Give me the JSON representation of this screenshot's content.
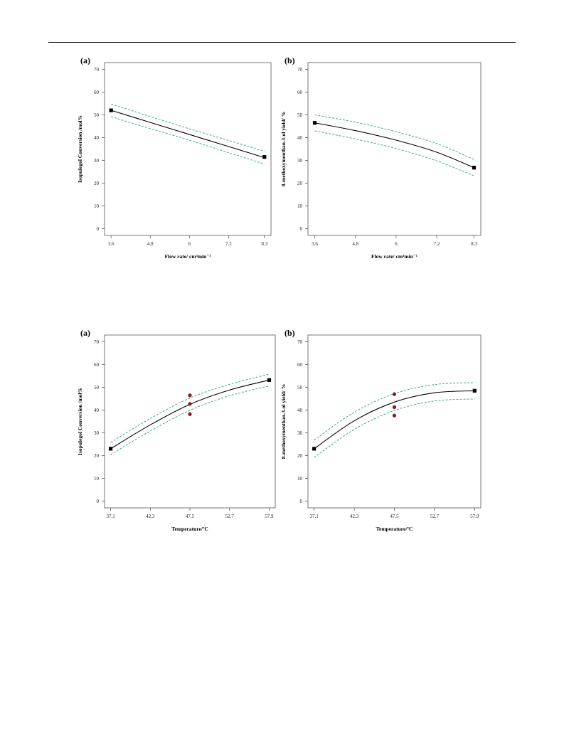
{
  "chart_data": [
    {
      "type": "line",
      "panel_label": "(a)",
      "xlabel": "Flow rate/ cm³min⁻¹",
      "ylabel": "Isopulegol Conversion /mol%",
      "xlim": [
        3.4,
        8.5
      ],
      "ylim": [
        -3,
        73
      ],
      "xticks": [
        3.6,
        4.8,
        6,
        7.2,
        8.3
      ],
      "yticks": [
        0,
        10,
        20,
        30,
        40,
        50,
        60,
        70
      ],
      "series": [
        {
          "role": "fit",
          "color": "#000000",
          "x": [
            3.6,
            4.8,
            6.0,
            7.2,
            8.3
          ],
          "y": [
            52.0,
            46.7,
            41.4,
            36.1,
            31.2
          ]
        },
        {
          "role": "upper-ci",
          "color": "#2a9d8f",
          "x": [
            3.6,
            4.8,
            6.0,
            7.2,
            8.3
          ],
          "y": [
            54.8,
            49.3,
            43.9,
            38.8,
            34.0
          ]
        },
        {
          "role": "lower-ci",
          "color": "#2a9d8f",
          "x": [
            3.6,
            4.8,
            6.0,
            7.2,
            8.3
          ],
          "y": [
            49.2,
            44.0,
            38.9,
            33.4,
            28.4
          ]
        }
      ],
      "points": [
        {
          "x": 3.6,
          "y": 52.0,
          "marker": "square",
          "color": "#000000"
        },
        {
          "x": 8.3,
          "y": 31.5,
          "marker": "square",
          "color": "#000000"
        }
      ]
    },
    {
      "type": "line",
      "panel_label": "(b)",
      "xlabel": "Flow rate/ cm³min⁻¹",
      "ylabel": "8-methoxymenthan-3-ol yield/ %",
      "xlim": [
        3.4,
        8.5
      ],
      "ylim": [
        -3,
        73
      ],
      "xticks": [
        3.6,
        4.8,
        6,
        7.2,
        8.3
      ],
      "yticks": [
        0,
        10,
        20,
        30,
        40,
        50,
        60,
        70
      ],
      "series": [
        {
          "role": "fit",
          "color": "#000000",
          "x": [
            3.6,
            4.8,
            6.0,
            7.2,
            8.3
          ],
          "y": [
            46.5,
            43.1,
            38.9,
            33.6,
            26.8
          ]
        },
        {
          "role": "upper-ci",
          "color": "#2a9d8f",
          "x": [
            3.6,
            4.8,
            6.0,
            7.2,
            8.3
          ],
          "y": [
            50.0,
            46.8,
            42.6,
            37.4,
            30.4
          ]
        },
        {
          "role": "lower-ci",
          "color": "#2a9d8f",
          "x": [
            3.6,
            4.8,
            6.0,
            7.2,
            8.3
          ],
          "y": [
            43.0,
            39.4,
            35.2,
            29.8,
            23.2
          ]
        }
      ],
      "points": [
        {
          "x": 3.6,
          "y": 46.5,
          "marker": "square",
          "color": "#000000"
        },
        {
          "x": 8.3,
          "y": 26.8,
          "marker": "square",
          "color": "#000000"
        }
      ]
    },
    {
      "type": "line",
      "panel_label": "(a)",
      "xlabel": "Temperature/ºC",
      "ylabel": "Isopulegol Conversion /mol%",
      "xlim": [
        36.3,
        58.7
      ],
      "ylim": [
        -3,
        73
      ],
      "xticks": [
        37.1,
        42.3,
        47.5,
        52.7,
        57.9
      ],
      "yticks": [
        0,
        10,
        20,
        30,
        40,
        50,
        60,
        70
      ],
      "series": [
        {
          "role": "fit",
          "color": "#000000",
          "x": [
            37.1,
            42.3,
            47.5,
            52.7,
            57.9
          ],
          "y": [
            23.0,
            33.5,
            42.5,
            48.8,
            53.2
          ]
        },
        {
          "role": "upper-ci",
          "color": "#2a9d8f",
          "x": [
            37.1,
            42.3,
            47.5,
            52.7,
            57.9
          ],
          "y": [
            25.8,
            36.3,
            45.3,
            51.3,
            55.8
          ]
        },
        {
          "role": "lower-ci",
          "color": "#2a9d8f",
          "x": [
            37.1,
            42.3,
            47.5,
            52.7,
            57.9
          ],
          "y": [
            20.4,
            30.8,
            39.9,
            46.3,
            50.6
          ]
        }
      ],
      "points": [
        {
          "x": 37.1,
          "y": 23.0,
          "marker": "square",
          "color": "#000000"
        },
        {
          "x": 57.9,
          "y": 53.2,
          "marker": "square",
          "color": "#000000"
        },
        {
          "x": 47.5,
          "y": 46.5,
          "marker": "circle",
          "color": "#8b1a1a"
        },
        {
          "x": 47.5,
          "y": 42.7,
          "marker": "circle",
          "color": "#8b1a1a"
        },
        {
          "x": 47.5,
          "y": 38.2,
          "marker": "circle",
          "color": "#8b1a1a"
        }
      ]
    },
    {
      "type": "line",
      "panel_label": "(b)",
      "xlabel": "Temperature/ºC",
      "ylabel": "8-methoxymenthan-3-ol yield/ %",
      "xlim": [
        36.3,
        58.7
      ],
      "ylim": [
        -3,
        73
      ],
      "xticks": [
        37.1,
        42.3,
        47.5,
        52.7,
        57.9
      ],
      "yticks": [
        0,
        10,
        20,
        30,
        40,
        50,
        60,
        70
      ],
      "series": [
        {
          "role": "fit",
          "color": "#000000",
          "x": [
            37.1,
            42.3,
            47.5,
            52.7,
            57.9
          ],
          "y": [
            23.0,
            35.3,
            43.5,
            47.6,
            48.5
          ]
        },
        {
          "role": "upper-ci",
          "color": "#2a9d8f",
          "x": [
            37.1,
            42.3,
            47.5,
            52.7,
            57.9
          ],
          "y": [
            26.8,
            39.1,
            47.2,
            51.2,
            52.1
          ]
        },
        {
          "role": "lower-ci",
          "color": "#2a9d8f",
          "x": [
            37.1,
            42.3,
            47.5,
            52.7,
            57.9
          ],
          "y": [
            19.2,
            31.5,
            39.8,
            44.0,
            44.9
          ]
        }
      ],
      "points": [
        {
          "x": 37.1,
          "y": 23.0,
          "marker": "square",
          "color": "#000000"
        },
        {
          "x": 57.9,
          "y": 48.5,
          "marker": "square",
          "color": "#000000"
        },
        {
          "x": 47.5,
          "y": 47.0,
          "marker": "circle",
          "color": "#8b1a1a"
        },
        {
          "x": 47.5,
          "y": 41.3,
          "marker": "circle",
          "color": "#8b1a1a"
        },
        {
          "x": 47.5,
          "y": 37.6,
          "marker": "circle",
          "color": "#8b1a1a"
        }
      ]
    }
  ]
}
